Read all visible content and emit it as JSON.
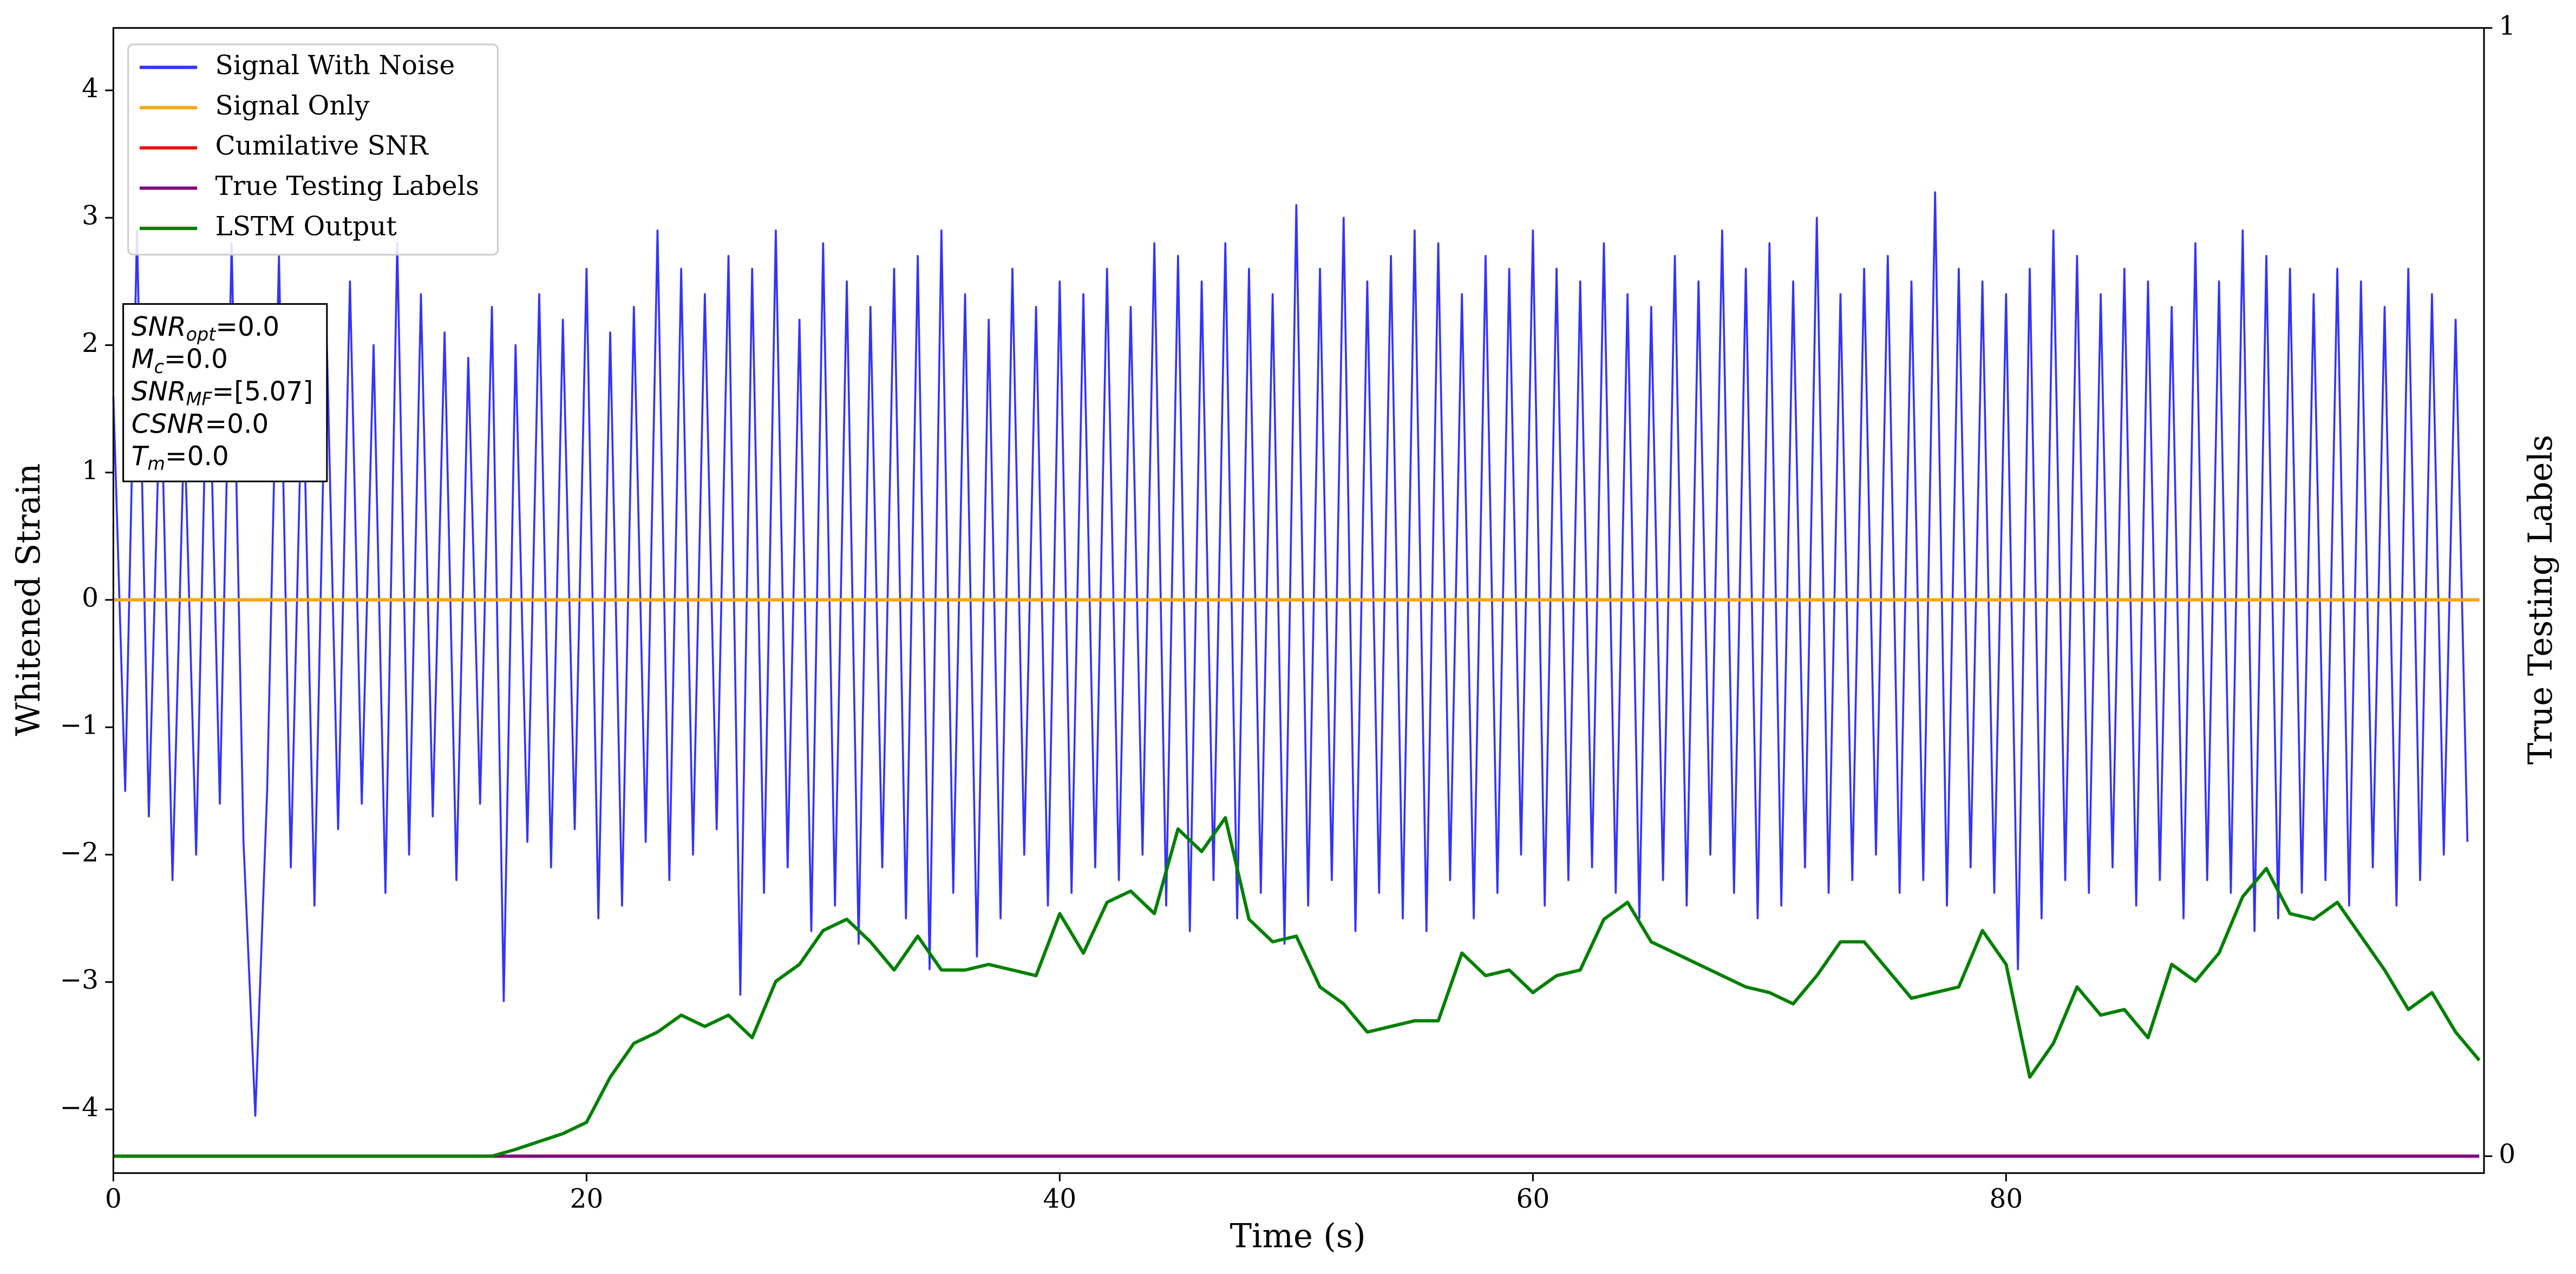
{
  "chart_data": {
    "type": "line",
    "xlabel": "Time (s)",
    "ylabel": "Whitened Strain",
    "y2label": "True Testing Labels",
    "xlim": [
      0,
      100.2
    ],
    "xticks": [
      0,
      20,
      40,
      60,
      80
    ],
    "ylim": [
      -4.5,
      4.49
    ],
    "yticks": [
      {
        "value": -4,
        "label": "−4"
      },
      {
        "value": -3,
        "label": "−3"
      },
      {
        "value": -2,
        "label": "−2"
      },
      {
        "value": -1,
        "label": "−1"
      },
      0,
      1,
      2,
      3,
      4
    ],
    "y2lim": [
      -0.015,
      1
    ],
    "y2ticks": [
      0,
      1
    ],
    "legend": "upper left",
    "annotation": [
      {
        "symbol": "SNR",
        "subscript": "opt",
        "text": "=0.0"
      },
      {
        "symbol": "M",
        "subscript": "c",
        "text": "=0.0"
      },
      {
        "symbol": "SNR",
        "subscript": "MF",
        "text": "=[5.07]"
      },
      {
        "symbol": "CSNR",
        "subscript": null,
        "text": "=0.0"
      },
      {
        "symbol": "T",
        "subscript": "m",
        "text": "=0.0"
      }
    ],
    "series": [
      {
        "name": "Signal With Noise",
        "color": "#3333ff",
        "x": [
          0,
          0.5,
          1,
          1.5,
          2,
          2.5,
          3,
          3.5,
          4,
          4.5,
          5,
          5.5,
          6,
          6.5,
          7,
          7.5,
          8,
          8.5,
          9,
          9.5,
          10,
          10.5,
          11,
          11.5,
          12,
          12.5,
          13,
          13.5,
          14,
          14.5,
          15,
          15.5,
          16,
          16.5,
          17,
          17.5,
          18,
          18.5,
          19,
          19.5,
          20,
          20.5,
          21,
          21.5,
          22,
          22.5,
          23,
          23.5,
          24,
          24.5,
          25,
          25.5,
          26,
          26.5,
          27,
          27.5,
          28,
          28.5,
          29,
          29.5,
          30,
          30.5,
          31,
          31.5,
          32,
          32.5,
          33,
          33.5,
          34,
          34.5,
          35,
          35.5,
          36,
          36.5,
          37,
          37.5,
          38,
          38.5,
          39,
          39.5,
          40,
          40.5,
          41,
          41.5,
          42,
          42.5,
          43,
          43.5,
          44,
          44.5,
          45,
          45.5,
          46,
          46.5,
          47,
          47.5,
          48,
          48.5,
          49,
          49.5,
          50,
          50.5,
          51,
          51.5,
          52,
          52.5,
          53,
          53.5,
          54,
          54.5,
          55,
          55.5,
          56,
          56.5,
          57,
          57.5,
          58,
          58.5,
          59,
          59.5,
          60,
          60.5,
          61,
          61.5,
          62,
          62.5,
          63,
          63.5,
          64,
          64.5,
          65,
          65.5,
          66,
          66.5,
          67,
          67.5,
          68,
          68.5,
          69,
          69.5,
          70,
          70.5,
          71,
          71.5,
          72,
          72.5,
          73,
          73.5,
          74,
          74.5,
          75,
          75.5,
          76,
          76.5,
          77,
          77.5,
          78,
          78.5,
          79,
          79.5,
          80,
          80.5,
          81,
          81.5,
          82,
          82.5,
          83,
          83.5,
          84,
          84.5,
          85,
          85.5,
          86,
          86.5,
          87,
          87.5,
          88,
          88.5,
          89,
          89.5,
          90,
          90.5,
          91,
          91.5,
          92,
          92.5,
          93,
          93.5,
          94,
          94.5,
          95,
          95.5,
          96,
          96.5,
          97,
          97.5,
          98,
          98.5,
          99,
          99.5
        ],
        "values": [
          1.6,
          -1.5,
          2.9,
          -1.7,
          1.8,
          -2.2,
          1.4,
          -2.0,
          2.3,
          -1.6,
          2.8,
          -1.9,
          -4.05,
          -1.5,
          2.7,
          -2.1,
          1.9,
          -2.4,
          2.2,
          -1.8,
          2.5,
          -1.6,
          2.0,
          -2.3,
          2.8,
          -2.0,
          2.4,
          -1.7,
          2.1,
          -2.2,
          1.9,
          -1.6,
          2.3,
          -3.15,
          2.0,
          -1.9,
          2.4,
          -2.1,
          2.2,
          -1.8,
          2.6,
          -2.5,
          2.1,
          -2.4,
          2.3,
          -1.9,
          2.9,
          -2.2,
          2.6,
          -2.0,
          2.4,
          -1.8,
          2.7,
          -3.1,
          2.6,
          -2.3,
          2.9,
          -2.1,
          2.2,
          -2.6,
          2.8,
          -2.4,
          2.5,
          -2.7,
          2.3,
          -2.1,
          2.6,
          -2.5,
          2.7,
          -2.9,
          2.9,
          -2.3,
          2.4,
          -2.8,
          2.2,
          -2.5,
          2.6,
          -2.0,
          2.3,
          -2.4,
          2.5,
          -2.3,
          2.4,
          -2.1,
          2.6,
          -2.2,
          2.3,
          -2.0,
          2.8,
          -2.4,
          2.7,
          -2.6,
          2.5,
          -2.2,
          2.8,
          -2.5,
          2.6,
          -2.3,
          2.4,
          -2.7,
          3.1,
          -2.4,
          2.6,
          -2.2,
          3.0,
          -2.6,
          2.5,
          -2.3,
          2.7,
          -2.5,
          2.9,
          -2.6,
          2.8,
          -2.2,
          2.4,
          -2.5,
          2.7,
          -2.3,
          2.6,
          -2.0,
          2.9,
          -2.4,
          2.6,
          -2.2,
          2.5,
          -2.1,
          2.8,
          -2.3,
          2.4,
          -2.5,
          2.3,
          -2.2,
          2.7,
          -2.4,
          2.5,
          -2.0,
          2.9,
          -2.3,
          2.6,
          -2.5,
          2.8,
          -2.4,
          2.5,
          -2.1,
          3.0,
          -2.3,
          2.4,
          -2.2,
          2.6,
          -2.0,
          2.7,
          -2.3,
          2.5,
          -2.2,
          3.2,
          -2.4,
          2.6,
          -2.1,
          2.5,
          -2.3,
          2.4,
          -2.9,
          2.6,
          -2.5,
          2.9,
          -2.2,
          2.7,
          -2.3,
          2.4,
          -2.1,
          2.6,
          -2.4,
          2.5,
          -2.2,
          2.3,
          -2.5,
          2.8,
          -2.2,
          2.5,
          -2.3,
          2.9,
          -2.6,
          2.7,
          -2.5,
          2.6,
          -2.3,
          2.4,
          -2.2,
          2.6,
          -2.4,
          2.5,
          -2.1,
          2.3,
          -2.4,
          2.6,
          -2.2,
          2.4,
          -2.0,
          2.2,
          -1.9
        ]
      },
      {
        "name": "Signal Only",
        "color": "#f5a623",
        "x": [
          0,
          100
        ],
        "values": [
          0,
          0
        ]
      },
      {
        "name": "Cumilative SNR",
        "color": "#ee1111",
        "x": [
          0,
          100
        ],
        "values": [
          0,
          0
        ]
      },
      {
        "name": "True Testing Labels",
        "color": "#800080",
        "axis": "y2",
        "x": [
          0,
          100
        ],
        "values": [
          0,
          0
        ]
      },
      {
        "name": "LSTM Output",
        "color": "#008000",
        "axis": "y2",
        "x": [
          0,
          1,
          2,
          3,
          4,
          5,
          6,
          7,
          8,
          9,
          10,
          11,
          12,
          13,
          14,
          15,
          16,
          17,
          18,
          19,
          20,
          21,
          22,
          23,
          24,
          25,
          26,
          27,
          28,
          29,
          30,
          31,
          32,
          33,
          34,
          35,
          36,
          37,
          38,
          39,
          40,
          41,
          42,
          43,
          44,
          45,
          46,
          47,
          48,
          49,
          50,
          51,
          52,
          53,
          54,
          55,
          56,
          57,
          58,
          59,
          60,
          61,
          62,
          63,
          64,
          65,
          66,
          67,
          68,
          69,
          70,
          71,
          72,
          73,
          74,
          75,
          76,
          77,
          78,
          79,
          80,
          81,
          82,
          83,
          84,
          85,
          86,
          87,
          88,
          89,
          90,
          91,
          92,
          93,
          94,
          95,
          96,
          97,
          98,
          99,
          100
        ],
        "values": [
          0,
          0,
          0,
          0,
          0,
          0,
          0,
          0,
          0,
          0,
          0,
          0,
          0,
          0,
          0,
          0,
          0,
          0.006,
          0.013,
          0.02,
          0.03,
          0.07,
          0.1,
          0.11,
          0.125,
          0.115,
          0.125,
          0.105,
          0.155,
          0.17,
          0.2,
          0.21,
          0.19,
          0.165,
          0.195,
          0.165,
          0.165,
          0.17,
          0.165,
          0.16,
          0.215,
          0.18,
          0.225,
          0.235,
          0.215,
          0.29,
          0.27,
          0.3,
          0.21,
          0.19,
          0.195,
          0.15,
          0.135,
          0.11,
          0.115,
          0.12,
          0.12,
          0.18,
          0.16,
          0.165,
          0.145,
          0.16,
          0.165,
          0.21,
          0.225,
          0.19,
          0.18,
          0.17,
          0.16,
          0.15,
          0.145,
          0.135,
          0.16,
          0.19,
          0.19,
          0.165,
          0.14,
          0.145,
          0.15,
          0.2,
          0.17,
          0.07,
          0.1,
          0.15,
          0.125,
          0.13,
          0.105,
          0.17,
          0.155,
          0.18,
          0.23,
          0.255,
          0.215,
          0.21,
          0.225,
          0.195,
          0.165,
          0.13,
          0.145,
          0.11,
          0.085
        ]
      }
    ]
  }
}
